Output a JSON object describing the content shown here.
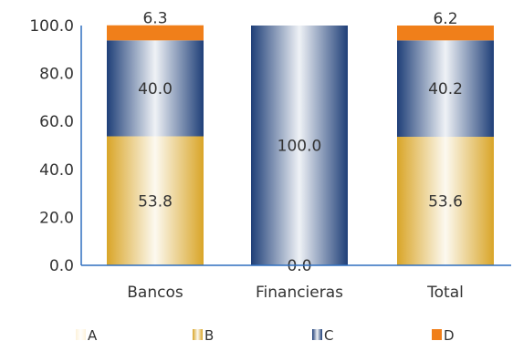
{
  "chart_data": {
    "type": "bar",
    "stacked": true,
    "categories": [
      "Bancos",
      "Financieras",
      "Total"
    ],
    "series": [
      {
        "name": "A",
        "values": [
          0.0,
          0.0,
          0.0
        ],
        "color": "#FDF2DA"
      },
      {
        "name": "B",
        "values": [
          53.8,
          0.0,
          53.6
        ],
        "color": "#D9A528"
      },
      {
        "name": "C",
        "values": [
          40.0,
          100.0,
          40.2
        ],
        "color": "#1F3F78"
      },
      {
        "name": "D",
        "values": [
          6.3,
          0.0,
          6.2
        ],
        "color": "#F07F1A"
      }
    ],
    "data_labels": [
      {
        "category": "Bancos",
        "series": "B",
        "text": "53.8"
      },
      {
        "category": "Bancos",
        "series": "C",
        "text": "40.0"
      },
      {
        "category": "Bancos",
        "series": "D",
        "text": "6.3"
      },
      {
        "category": "Financieras",
        "series": "B",
        "text": "0.0"
      },
      {
        "category": "Financieras",
        "series": "C",
        "text": "100.0"
      },
      {
        "category": "Total",
        "series": "B",
        "text": "53.6"
      },
      {
        "category": "Total",
        "series": "C",
        "text": "40.2"
      },
      {
        "category": "Total",
        "series": "D",
        "text": "6.2"
      }
    ],
    "y_ticks": [
      "0.0",
      "20.0",
      "40.0",
      "60.0",
      "80.0",
      "100.0"
    ],
    "ylim": [
      0,
      100
    ],
    "grid": false,
    "legend_position": "bottom"
  }
}
